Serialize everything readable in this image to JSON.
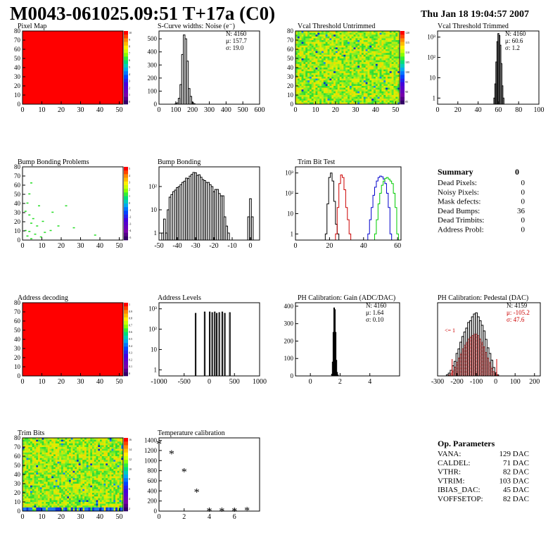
{
  "header": {
    "title": "M0043-061025.09:51 T+17a (C0)",
    "timestamp": "Thu Jan 18 19:04:57 2007"
  },
  "colors": {
    "hist_line": "#000000",
    "red_series": "#cc0000",
    "blue_series": "#0000cc",
    "green_series": "#00cc00",
    "map_red": "#ff0000",
    "map_green": "#22dd22"
  },
  "summary": {
    "title": "Summary",
    "total": "0",
    "rows": [
      {
        "label": "Dead Pixels:",
        "value": "0"
      },
      {
        "label": "Noisy Pixels:",
        "value": "0"
      },
      {
        "label": "Mask defects:",
        "value": "0"
      },
      {
        "label": "Dead Bumps:",
        "value": "36"
      },
      {
        "label": "Dead Trimbits:",
        "value": "0"
      },
      {
        "label": "Address Probl:",
        "value": "0"
      }
    ]
  },
  "op_params": {
    "title": "Op. Parameters",
    "rows": [
      {
        "label": "VANA:",
        "value": "129 DAC"
      },
      {
        "label": "CALDEL:",
        "value": "71 DAC"
      },
      {
        "label": "VTHR:",
        "value": "82 DAC"
      },
      {
        "label": "VTRIM:",
        "value": "103 DAC"
      },
      {
        "label": "IBIAS_DAC:",
        "value": "45 DAC"
      },
      {
        "label": "VOFFSETOP:",
        "value": "82 DAC"
      }
    ]
  },
  "chart_data": [
    {
      "id": "pixel-map",
      "type": "heatmap",
      "title": "Pixel Map",
      "xlim": [
        0,
        52
      ],
      "ylim": [
        0,
        80
      ],
      "xticks": [
        0,
        10,
        20,
        30,
        40,
        50
      ],
      "yticks": [
        0,
        10,
        20,
        30,
        40,
        50,
        60,
        70,
        80
      ],
      "fill": "uniform-max",
      "palette": {
        "ticks": [
          "10",
          "9",
          "8",
          "7",
          "6",
          "5",
          "4",
          "3",
          "2",
          "1",
          "0"
        ]
      }
    },
    {
      "id": "scurve-noise",
      "type": "bar",
      "title": "S-Curve widths: Noise (e⁻)",
      "xlim": [
        0,
        600
      ],
      "ylim": [
        0,
        560
      ],
      "xticks": [
        0,
        100,
        200,
        300,
        400,
        500,
        600
      ],
      "yticks": [
        0,
        100,
        200,
        300,
        400,
        500
      ],
      "stats": [
        "N: 4160",
        "μ: 157.7",
        "σ: 19.0"
      ],
      "bin_width": 10,
      "x": [
        100,
        110,
        120,
        130,
        140,
        150,
        160,
        170,
        180,
        190,
        200,
        210
      ],
      "values": [
        3,
        10,
        45,
        150,
        380,
        530,
        500,
        330,
        120,
        60,
        15,
        4
      ]
    },
    {
      "id": "vcal-untrimmed",
      "type": "heatmap",
      "title": "Vcal Threshold Untrimmed",
      "xlim": [
        0,
        52
      ],
      "ylim": [
        0,
        80
      ],
      "xticks": [
        0,
        10,
        20,
        30,
        40,
        50
      ],
      "yticks": [
        0,
        10,
        20,
        30,
        40,
        50,
        60,
        70,
        80
      ],
      "fill": "noise-green-yellow",
      "palette": {
        "ticks": [
          "120",
          "115",
          "110",
          "105",
          "100",
          "95",
          "90",
          "85"
        ]
      }
    },
    {
      "id": "vcal-trimmed",
      "type": "bar",
      "title": "Vcal Threshold Trimmed",
      "log_y": true,
      "xlim": [
        0,
        100
      ],
      "ylim": [
        0.5,
        2000
      ],
      "xticks": [
        0,
        20,
        40,
        60,
        80,
        100
      ],
      "ytick_labels": [
        "1",
        "10",
        "10²",
        "10³"
      ],
      "stats": [
        "N: 4160",
        "μ: 60.6",
        "σ: 1.2"
      ],
      "bin_width": 1,
      "x": [
        56,
        57,
        58,
        59,
        60,
        61,
        62,
        63,
        64,
        65
      ],
      "values": [
        1,
        5,
        60,
        600,
        1500,
        1200,
        400,
        50,
        4,
        1
      ]
    },
    {
      "id": "bump-bonding-problems",
      "type": "heatmap",
      "title": "Bump Bonding Problems",
      "xlim": [
        0,
        52
      ],
      "ylim": [
        0,
        80
      ],
      "xticks": [
        0,
        10,
        20,
        30,
        40,
        50
      ],
      "yticks": [
        0,
        10,
        20,
        30,
        40,
        50,
        60,
        70,
        80
      ],
      "fill": "sparse-green",
      "points": [
        [
          4,
          62
        ],
        [
          3,
          50
        ],
        [
          2,
          40
        ],
        [
          8,
          37
        ],
        [
          22,
          37
        ],
        [
          1,
          31
        ],
        [
          15,
          30
        ],
        [
          3,
          27
        ],
        [
          5,
          23
        ],
        [
          10,
          20
        ],
        [
          4,
          18
        ],
        [
          7,
          15
        ],
        [
          18,
          15
        ],
        [
          26,
          13
        ],
        [
          1,
          10
        ],
        [
          14,
          10
        ],
        [
          3,
          9
        ],
        [
          11,
          8
        ],
        [
          6,
          6
        ],
        [
          37,
          5
        ],
        [
          2,
          4
        ],
        [
          9,
          3
        ],
        [
          4,
          1
        ]
      ],
      "palette": {
        "ticks": [
          "5",
          "4",
          "3",
          "2",
          "1",
          "0",
          "-1",
          "-2",
          "-3",
          "-4",
          "-5"
        ]
      }
    },
    {
      "id": "bump-bonding",
      "type": "bar",
      "title": "Bump Bonding",
      "log_y": true,
      "xlim": [
        -50,
        5
      ],
      "ylim": [
        0.5,
        700
      ],
      "xticks": [
        -50,
        -40,
        -30,
        -20,
        -10,
        0
      ],
      "ytick_labels": [
        "1",
        "10",
        "10²"
      ],
      "bin_width": 1,
      "x": [
        -48,
        -47,
        -46,
        -45,
        -44,
        -43,
        -42,
        -41,
        -40,
        -39,
        -38,
        -37,
        -36,
        -35,
        -34,
        -33,
        -32,
        -31,
        -30,
        -29,
        -28,
        -27,
        -26,
        -25,
        -24,
        -23,
        -22,
        -21,
        -20,
        -19,
        -18,
        -17,
        -16,
        -15,
        -14,
        -13,
        -12,
        -11,
        -10,
        -9,
        -8,
        -7,
        -6,
        -5,
        -4,
        -3,
        -2,
        -1,
        0,
        1
      ],
      "values": [
        1,
        4,
        1,
        10,
        35,
        45,
        60,
        70,
        90,
        100,
        120,
        150,
        170,
        230,
        220,
        280,
        330,
        400,
        390,
        300,
        320,
        250,
        200,
        180,
        150,
        150,
        120,
        100,
        60,
        75,
        75,
        50,
        40,
        40,
        5,
        2,
        1,
        0,
        0,
        0,
        0,
        0,
        0,
        0,
        0,
        0,
        0,
        5,
        30,
        5
      ]
    },
    {
      "id": "trim-bit-test",
      "type": "line",
      "title": "Trim Bit Test",
      "log_y": true,
      "xlim": [
        0,
        62
      ],
      "ylim": [
        0.5,
        2000
      ],
      "xticks": [
        0,
        20,
        40,
        60
      ],
      "ytick_labels": [
        "1",
        "10",
        "10²",
        "10³"
      ],
      "series": [
        {
          "color": "#000000",
          "x": [
            18,
            19,
            20,
            21,
            22,
            23,
            24,
            25
          ],
          "values": [
            1,
            30,
            600,
            1000,
            400,
            40,
            3,
            1
          ]
        },
        {
          "color": "#cc0000",
          "x": [
            24,
            25,
            26,
            27,
            28,
            29,
            30,
            31,
            32
          ],
          "values": [
            1,
            20,
            300,
            800,
            600,
            150,
            20,
            5,
            1
          ]
        },
        {
          "color": "#0000cc",
          "x": [
            43,
            44,
            45,
            46,
            47,
            48,
            49,
            50,
            51,
            52,
            53,
            54,
            55,
            56
          ],
          "values": [
            1,
            5,
            20,
            80,
            200,
            400,
            600,
            700,
            650,
            500,
            300,
            100,
            20,
            1
          ]
        },
        {
          "color": "#00cc00",
          "x": [
            47,
            48,
            49,
            50,
            51,
            52,
            53,
            54,
            55,
            56,
            57,
            58,
            59,
            60
          ],
          "values": [
            1,
            5,
            30,
            100,
            250,
            400,
            550,
            600,
            500,
            400,
            300,
            100,
            20,
            1
          ]
        }
      ]
    },
    {
      "id": "address-decoding",
      "type": "heatmap",
      "title": "Address decoding",
      "xlim": [
        0,
        52
      ],
      "ylim": [
        0,
        80
      ],
      "xticks": [
        0,
        10,
        20,
        30,
        40,
        50
      ],
      "yticks": [
        0,
        10,
        20,
        30,
        40,
        50,
        60,
        70,
        80
      ],
      "fill": "uniform-max",
      "palette": {
        "ticks": [
          "1",
          "0.9",
          "0.8",
          "0.7",
          "0.6",
          "0.5",
          "0.4",
          "0.3",
          "0.2",
          "0.1",
          "0"
        ]
      }
    },
    {
      "id": "address-levels",
      "type": "bar",
      "title": "Address Levels",
      "log_y": true,
      "xlim": [
        -1000,
        1000
      ],
      "ylim": [
        0.5,
        2000
      ],
      "xticks": [
        -1000,
        -500,
        0,
        500,
        1000
      ],
      "ytick_labels": [
        "1",
        "10",
        "10²",
        "10³"
      ],
      "bin_width": 10,
      "x": [
        -280,
        -100,
        0,
        50,
        100,
        140,
        190,
        250,
        300,
        400
      ],
      "values": [
        600,
        700,
        700,
        650,
        700,
        600,
        650,
        700,
        600,
        650
      ]
    },
    {
      "id": "ph-gain",
      "type": "bar",
      "title": "PH Calibration: Gain (ADC/DAC)",
      "xlim": [
        -1,
        6
      ],
      "ylim": [
        0,
        420
      ],
      "xticks": [
        0,
        2,
        4
      ],
      "yticks": [
        0,
        100,
        200,
        300,
        400
      ],
      "stats": [
        "N: 4160",
        "μ: 1.64",
        "σ: 0.10"
      ],
      "bin_width": 0.05,
      "x": [
        1.45,
        1.5,
        1.55,
        1.6,
        1.65,
        1.7,
        1.75,
        1.8,
        1.85
      ],
      "values": [
        10,
        80,
        250,
        390,
        380,
        250,
        90,
        20,
        5
      ]
    },
    {
      "id": "ph-pedestal",
      "type": "bar",
      "title": "PH Calibration: Pedestal (DAC)",
      "xlim": [
        -300,
        230
      ],
      "ylim": [
        0,
        130
      ],
      "xticks": [
        -300,
        -200,
        -100,
        0,
        100,
        200
      ],
      "yticks": [],
      "stats": [
        "N: 4159",
        "μ: -105.2",
        "σ: 47.6"
      ],
      "annotation": "<= 1",
      "bin_width": 10,
      "x": [
        -250,
        -240,
        -230,
        -220,
        -210,
        -200,
        -190,
        -180,
        -170,
        -160,
        -150,
        -140,
        -130,
        -120,
        -110,
        -100,
        -90,
        -80,
        -70,
        -60,
        -50,
        -40,
        -30,
        -20,
        -10,
        0,
        10
      ],
      "values": [
        2,
        5,
        10,
        18,
        26,
        40,
        48,
        60,
        70,
        78,
        85,
        95,
        98,
        105,
        110,
        112,
        105,
        98,
        90,
        80,
        65,
        50,
        40,
        28,
        15,
        6,
        2
      ],
      "overlay_values": [
        0,
        2,
        5,
        10,
        16,
        25,
        32,
        40,
        48,
        55,
        60,
        66,
        70,
        72,
        74,
        75,
        72,
        66,
        60,
        52,
        42,
        32,
        24,
        15,
        8,
        3,
        1
      ]
    },
    {
      "id": "trim-bits",
      "type": "heatmap",
      "title": "Trim Bits",
      "xlim": [
        0,
        52
      ],
      "ylim": [
        0,
        80
      ],
      "xticks": [
        0,
        10,
        20,
        30,
        40,
        50
      ],
      "yticks": [
        0,
        10,
        20,
        30,
        40,
        50,
        60,
        70,
        80
      ],
      "fill": "noise-green-yellow",
      "palette": {
        "ticks": [
          "16",
          "14",
          "12",
          "10",
          "8",
          "6",
          "4",
          "2"
        ]
      }
    },
    {
      "id": "temperature-calibration",
      "type": "scatter",
      "title": "Temperature calibration",
      "xlim": [
        0,
        8
      ],
      "ylim": [
        0,
        1450
      ],
      "xticks": [
        0,
        2,
        4,
        6
      ],
      "yticks": [
        0,
        200,
        400,
        600,
        800,
        1000,
        1200,
        1400
      ],
      "marker": "*",
      "x": [
        0,
        1,
        2,
        3,
        4,
        5,
        6,
        7
      ],
      "values": [
        1340,
        1140,
        790,
        380,
        10,
        5,
        5,
        20
      ]
    }
  ]
}
